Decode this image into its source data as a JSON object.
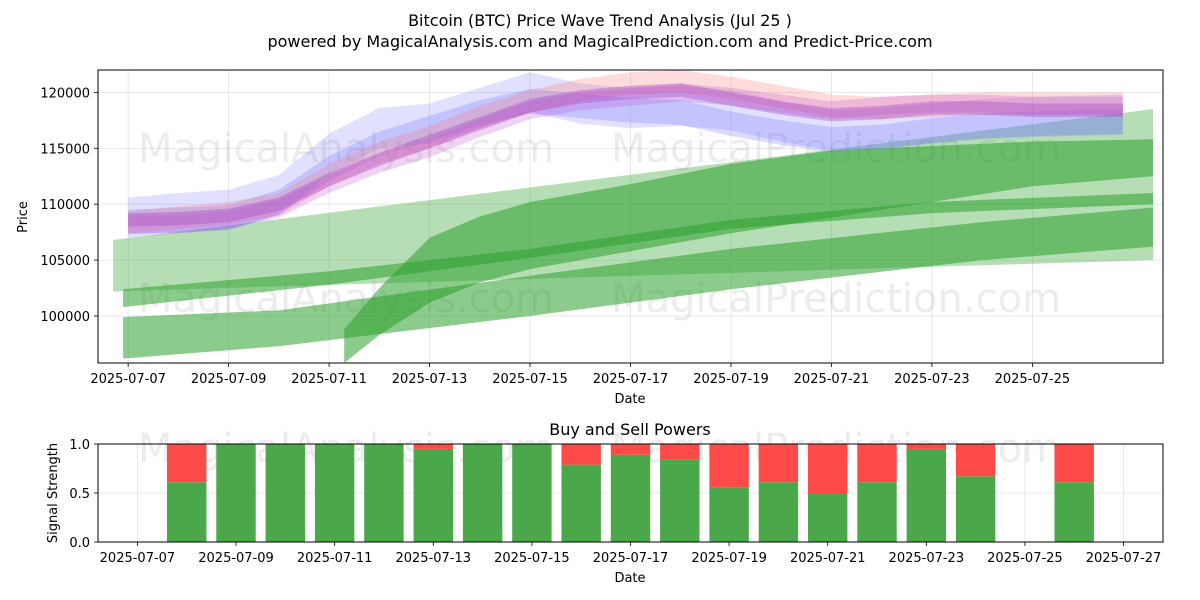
{
  "chart_data": [
    {
      "type": "area",
      "title": "Bitcoin (BTC) Price Wave Trend Analysis (Jul 25 )",
      "subtitle": "powered by MagicalAnalysis.com and MagicalPrediction.com and Predict-Price.com",
      "xlabel": "Date",
      "ylabel": "Price",
      "x_range": [
        -0.6,
        20.6
      ],
      "ylim": [
        95800,
        122000
      ],
      "x_ticks": [
        {
          "label": "2025-07-07",
          "day": 0
        },
        {
          "label": "2025-07-09",
          "day": 2
        },
        {
          "label": "2025-07-11",
          "day": 4
        },
        {
          "label": "2025-07-13",
          "day": 6
        },
        {
          "label": "2025-07-15",
          "day": 8
        },
        {
          "label": "2025-07-17",
          "day": 10
        },
        {
          "label": "2025-07-19",
          "day": 12
        },
        {
          "label": "2025-07-21",
          "day": 14
        },
        {
          "label": "2025-07-23",
          "day": 16
        },
        {
          "label": "2025-07-25",
          "day": 18
        }
      ],
      "y_ticks": [
        {
          "label": "100000",
          "value": 100000
        },
        {
          "label": "105000",
          "value": 105000
        },
        {
          "label": "110000",
          "value": 110000
        },
        {
          "label": "115000",
          "value": 115000
        },
        {
          "label": "120000",
          "value": 120000
        }
      ],
      "grid": true,
      "trend_bands": [
        {
          "name": "long-trend-wide",
          "color": "#2ca02c",
          "opacity": 0.35,
          "x": [
            -0.3,
            20.4
          ],
          "lower": [
            102200,
            105000
          ],
          "upper": [
            106800,
            118500
          ]
        },
        {
          "name": "long-trend-lower",
          "color": "#2ca02c",
          "opacity": 0.55,
          "x": [
            -0.1,
            3,
            8,
            12,
            17,
            20.4
          ],
          "lower": [
            96200,
            97300,
            100000,
            102400,
            105000,
            106200
          ],
          "upper": [
            99900,
            100500,
            103600,
            106000,
            108400,
            109700
          ]
        },
        {
          "name": "long-trend-mid",
          "color": "#2ca02c",
          "opacity": 0.55,
          "x": [
            -0.1,
            4,
            8,
            12,
            16,
            20.4
          ],
          "lower": [
            100800,
            102800,
            105200,
            107800,
            109200,
            110000
          ],
          "upper": [
            102400,
            104000,
            106000,
            108600,
            110200,
            111000
          ]
        },
        {
          "name": "long-trend-upper",
          "color": "#2ca02c",
          "opacity": 0.55,
          "x": [
            4.3,
            5,
            6,
            7,
            8,
            10,
            12,
            14,
            16,
            18,
            20.4
          ],
          "lower": [
            95800,
            98300,
            101200,
            103000,
            104200,
            105800,
            107400,
            108800,
            110200,
            111600,
            112500
          ],
          "upper": [
            98800,
            102500,
            107000,
            108900,
            110200,
            111800,
            113600,
            114800,
            115200,
            115600,
            115800
          ]
        }
      ],
      "wave_bands": [
        {
          "name": "wave-blue-1",
          "color": "#6b6bff",
          "opacity": 0.2,
          "x": [
            0,
            1,
            2,
            3,
            4,
            5,
            6,
            7,
            8,
            9,
            10,
            11,
            12,
            13,
            14,
            15,
            16,
            17,
            18,
            19.8
          ],
          "center": [
            108800,
            109200,
            109500,
            110800,
            114500,
            116800,
            117200,
            118600,
            120000,
            119000,
            118600,
            118800,
            118400,
            117400,
            116600,
            116800,
            117200,
            117600,
            117800,
            118000
          ],
          "half_width": 1800
        },
        {
          "name": "wave-blue-2",
          "color": "#6b6bff",
          "opacity": 0.25,
          "x": [
            0,
            1,
            2,
            3,
            4,
            5,
            6,
            7,
            8,
            9,
            10,
            11,
            12,
            13,
            14,
            15,
            16,
            17,
            18,
            19.8
          ],
          "center": [
            108400,
            108600,
            108800,
            110200,
            113200,
            115400,
            116800,
            118200,
            119200,
            118800,
            118400,
            118200,
            117200,
            116400,
            115800,
            116000,
            116600,
            117000,
            117200,
            117400
          ],
          "half_width": 1100
        },
        {
          "name": "wave-red-1",
          "color": "#ff7070",
          "opacity": 0.25,
          "x": [
            0,
            1,
            2,
            3,
            4,
            5,
            6,
            7,
            8,
            9,
            10,
            11,
            12,
            13,
            14,
            15,
            16,
            17,
            18,
            19.8
          ],
          "center": [
            108400,
            108800,
            109200,
            110000,
            112600,
            114600,
            116000,
            117800,
            119200,
            120200,
            120800,
            121000,
            120400,
            119600,
            118800,
            118600,
            118800,
            119000,
            119000,
            119000
          ],
          "half_width": 1000
        },
        {
          "name": "wave-purple-1",
          "color": "#a040c0",
          "opacity": 0.35,
          "x": [
            0,
            1,
            2,
            3,
            4,
            5,
            6,
            7,
            8,
            9,
            10,
            11,
            12,
            13,
            14,
            15,
            16,
            17,
            18,
            19.8
          ],
          "center": [
            108600,
            108700,
            109000,
            110000,
            112200,
            114000,
            115600,
            117200,
            118800,
            119600,
            120000,
            120200,
            119400,
            118600,
            118000,
            118200,
            118600,
            118600,
            118400,
            118400
          ],
          "half_width": 600
        },
        {
          "name": "wave-purple-2",
          "color": "#c050d0",
          "opacity": 0.25,
          "x": [
            0,
            1,
            2,
            3,
            4,
            5,
            6,
            7,
            8,
            9,
            10,
            11,
            12,
            13,
            14,
            15,
            16,
            17,
            18,
            19.8
          ],
          "center": [
            108200,
            108200,
            108600,
            109600,
            111800,
            113600,
            115000,
            116800,
            118400,
            119200,
            119600,
            120000,
            119600,
            119000,
            118400,
            118800,
            119000,
            119000,
            118800,
            118800
          ],
          "half_width": 800
        }
      ],
      "watermarks": [
        "MagicalAnalysis.com",
        "MagicalPrediction.com"
      ]
    },
    {
      "type": "bar",
      "title": "Buy and Sell Powers",
      "xlabel": "Date",
      "ylabel": "Signal Strength",
      "x_range": [
        -0.8,
        20.8
      ],
      "ylim": [
        0,
        1
      ],
      "x_ticks": [
        {
          "label": "2025-07-07",
          "day": 0
        },
        {
          "label": "2025-07-09",
          "day": 2
        },
        {
          "label": "2025-07-11",
          "day": 4
        },
        {
          "label": "2025-07-13",
          "day": 6
        },
        {
          "label": "2025-07-15",
          "day": 8
        },
        {
          "label": "2025-07-17",
          "day": 10
        },
        {
          "label": "2025-07-19",
          "day": 12
        },
        {
          "label": "2025-07-21",
          "day": 14
        },
        {
          "label": "2025-07-23",
          "day": 16
        },
        {
          "label": "2025-07-25",
          "day": 18
        },
        {
          "label": "2025-07-27",
          "day": 20
        }
      ],
      "y_ticks": [
        {
          "label": "0.0",
          "value": 0
        },
        {
          "label": "0.5",
          "value": 0.5
        },
        {
          "label": "1.0",
          "value": 1
        }
      ],
      "grid": true,
      "colors": {
        "buy": "#4aa84a",
        "sell": "#ff4a4a"
      },
      "bars": [
        {
          "day": 1,
          "buy": 0.61
        },
        {
          "day": 2,
          "buy": 1.0
        },
        {
          "day": 3,
          "buy": 1.0
        },
        {
          "day": 4,
          "buy": 1.0
        },
        {
          "day": 5,
          "buy": 1.0
        },
        {
          "day": 6,
          "buy": 0.95
        },
        {
          "day": 7,
          "buy": 1.0
        },
        {
          "day": 8,
          "buy": 1.0
        },
        {
          "day": 9,
          "buy": 0.79
        },
        {
          "day": 10,
          "buy": 0.89
        },
        {
          "day": 11,
          "buy": 0.84
        },
        {
          "day": 12,
          "buy": 0.56
        },
        {
          "day": 13,
          "buy": 0.61
        },
        {
          "day": 14,
          "buy": 0.5
        },
        {
          "day": 15,
          "buy": 0.61
        },
        {
          "day": 16,
          "buy": 0.95
        },
        {
          "day": 17,
          "buy": 0.67
        },
        {
          "day": 19,
          "buy": 0.61
        }
      ],
      "watermarks": [
        "MagicalAnalysis.com",
        "MagicalPrediction.com"
      ]
    }
  ]
}
